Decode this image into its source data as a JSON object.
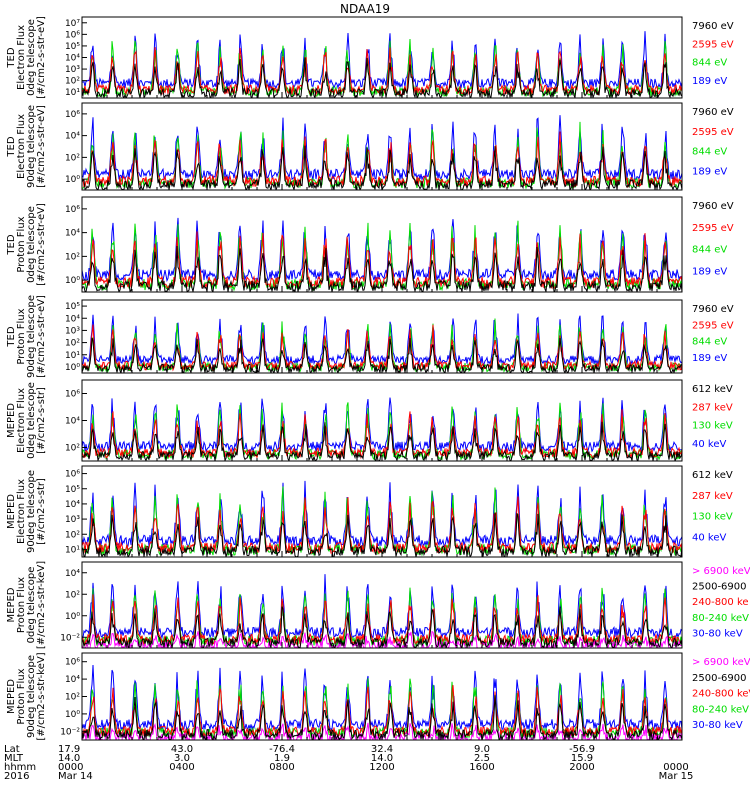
{
  "chart_data": {
    "type": "line",
    "title": "NDAA19",
    "panels": [
      {
        "ylabel": [
          "TED",
          "Electron Flux",
          "0deg telescope",
          "[#/cm2-s-str-eV]"
        ],
        "yticks": [
          "10¹",
          "10²",
          "10³",
          "10⁴",
          "10⁵",
          "10⁶",
          "10⁷"
        ],
        "ylim_exp": [
          1,
          7
        ],
        "legend": [
          {
            "name": "7960 eV",
            "color": "#000000"
          },
          {
            "name": "2595 eV",
            "color": "#ff0000"
          },
          {
            "name": "844 eV",
            "color": "#00dd00"
          },
          {
            "name": "189 eV",
            "color": "#0000ff"
          }
        ]
      },
      {
        "ylabel": [
          "TED",
          "Electron Flux",
          "90deg telescope",
          "[#/cm2-s-str-eV]"
        ],
        "yticks": [
          "10⁰",
          "10²",
          "10⁴",
          "10⁶"
        ],
        "ylim_exp": [
          0,
          6
        ],
        "legend": [
          {
            "name": "7960 eV",
            "color": "#000000"
          },
          {
            "name": "2595 eV",
            "color": "#ff0000"
          },
          {
            "name": "844 eV",
            "color": "#00dd00"
          },
          {
            "name": "189 eV",
            "color": "#0000ff"
          }
        ]
      },
      {
        "ylabel": [
          "TED",
          "Proton Flux",
          "0deg telescope",
          "[#/cm2-s-str-eV]"
        ],
        "yticks": [
          "10⁰",
          "10²",
          "10⁴",
          "10⁶"
        ],
        "ylim_exp": [
          0,
          6
        ],
        "legend": [
          {
            "name": "7960 eV",
            "color": "#000000"
          },
          {
            "name": "2595 eV",
            "color": "#ff0000"
          },
          {
            "name": "844 eV",
            "color": "#00dd00"
          },
          {
            "name": "189 eV",
            "color": "#0000ff"
          }
        ]
      },
      {
        "ylabel": [
          "TED",
          "Proton Flux",
          "90deg telescope",
          "[#/cm2-s-str-eV]"
        ],
        "yticks": [
          "10⁰",
          "10¹",
          "10²",
          "10³",
          "10⁴",
          "10⁵"
        ],
        "ylim_exp": [
          0,
          5
        ],
        "legend": [
          {
            "name": "7960 eV",
            "color": "#000000"
          },
          {
            "name": "2595 eV",
            "color": "#ff0000"
          },
          {
            "name": "844 eV",
            "color": "#00dd00"
          },
          {
            "name": "189 eV",
            "color": "#0000ff"
          }
        ]
      },
      {
        "ylabel": [
          "MEPED",
          "Electron Flux",
          "0deg telescope",
          "[#/cm2-s-str]"
        ],
        "yticks": [
          "10²",
          "10⁴",
          "10⁶"
        ],
        "ylim_exp": [
          1.5,
          7
        ],
        "legend": [
          {
            "name": "612 keV",
            "color": "#000000"
          },
          {
            "name": "287 keV",
            "color": "#ff0000"
          },
          {
            "name": "130 keV",
            "color": "#00dd00"
          },
          {
            "name": "40 keV",
            "color": "#0000ff"
          }
        ]
      },
      {
        "ylabel": [
          "MEPED",
          "Electron Flux",
          "90deg telescope",
          "[#/cm2-s-str]"
        ],
        "yticks": [
          "10¹",
          "10²",
          "10³",
          "10⁴",
          "10⁵",
          "10⁶"
        ],
        "ylim_exp": [
          1,
          6
        ],
        "legend": [
          {
            "name": "612 keV",
            "color": "#000000"
          },
          {
            "name": "287 keV",
            "color": "#ff0000"
          },
          {
            "name": "130 keV",
            "color": "#00dd00"
          },
          {
            "name": "40 keV",
            "color": "#0000ff"
          }
        ]
      },
      {
        "ylabel": [
          "MEPED",
          "Proton Flux",
          "0deg telescope",
          "[#/cm2-s-str-keV]"
        ],
        "yticks": [
          "10⁻²",
          "10⁰",
          "10²",
          "10⁴"
        ],
        "ylim_exp": [
          -2.5,
          5
        ],
        "legend": [
          {
            "name": "> 6900 keV",
            "color": "#ff00ff"
          },
          {
            "name": "2500-6900",
            "color": "#000000"
          },
          {
            "name": "240-800 ke",
            "color": "#ff0000"
          },
          {
            "name": "80-240 keV",
            "color": "#00dd00"
          },
          {
            "name": "30-80 keV",
            "color": "#0000ff"
          }
        ]
      },
      {
        "ylabel": [
          "MEPED",
          "Proton Flux",
          "90deg telescope",
          "[#/cm2-s-str-keV]"
        ],
        "yticks": [
          "10⁻²",
          "10⁰",
          "10²",
          "10⁴",
          "10⁶"
        ],
        "ylim_exp": [
          -2.5,
          6
        ],
        "legend": [
          {
            "name": "> 6900 keV",
            "color": "#ff00ff"
          },
          {
            "name": "2500-6900",
            "color": "#000000"
          },
          {
            "name": "240-800 keV",
            "color": "#ff0000"
          },
          {
            "name": "80-240 keV",
            "color": "#00dd00"
          },
          {
            "name": "30-80 keV",
            "color": "#0000ff"
          }
        ]
      }
    ],
    "x_axis": {
      "row_labels": [
        "Lat",
        "MLT",
        "hhmm",
        "2016"
      ],
      "columns": [
        {
          "values": [
            "17.9",
            "14.0",
            "0000",
            "Mar 14"
          ],
          "t": 0
        },
        {
          "values": [
            "43.0",
            "3.0",
            "0400",
            ""
          ],
          "t": 4
        },
        {
          "values": [
            "-76.4",
            "1.9",
            "0800",
            ""
          ],
          "t": 8
        },
        {
          "values": [
            "32.4",
            "14.0",
            "1200",
            ""
          ],
          "t": 12
        },
        {
          "values": [
            "9.0",
            "2.5",
            "1600",
            ""
          ],
          "t": 16
        },
        {
          "values": [
            "-56.9",
            "15.9",
            "2000",
            ""
          ],
          "t": 20
        },
        {
          "values": [
            "",
            "",
            "0000",
            "Mar 15"
          ],
          "t": 24
        }
      ],
      "range_hours": [
        0,
        24
      ]
    }
  }
}
